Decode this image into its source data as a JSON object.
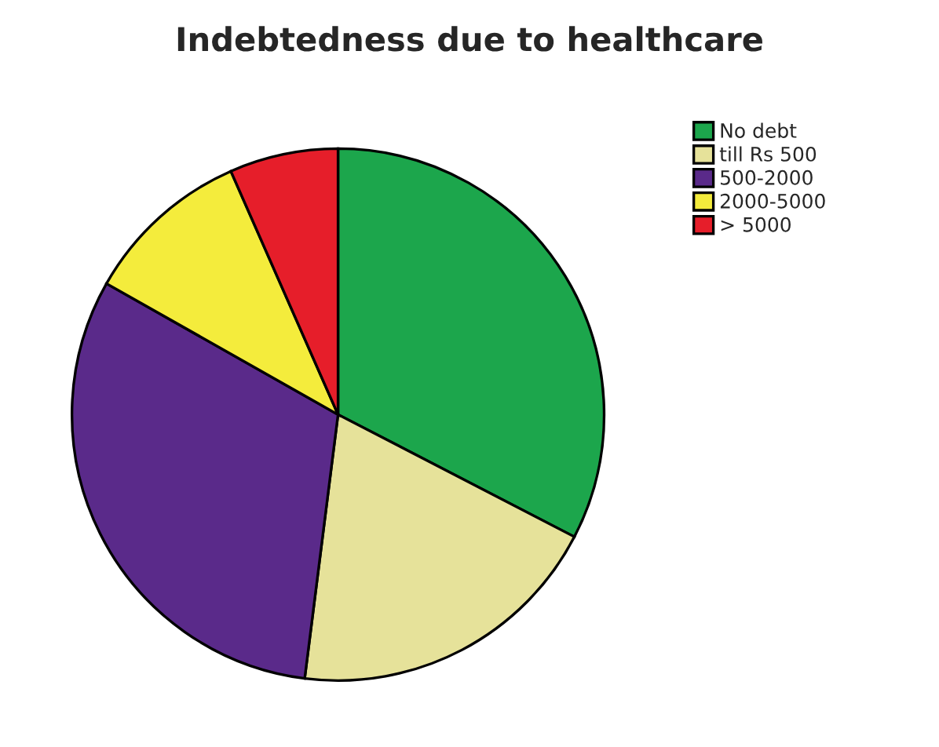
{
  "chart_data": {
    "type": "pie",
    "title": "Indebtedness due to healthcare",
    "categories": [
      "No debt",
      "till Rs 500",
      "500-2000",
      "2000-5000",
      "> 5000"
    ],
    "values": [
      32.6,
      19.4,
      31.2,
      10.2,
      6.6
    ],
    "colors": [
      "#1ca64c",
      "#e6e29a",
      "#5a2a8a",
      "#f4ec3c",
      "#e61e2a"
    ],
    "legend": "top right"
  }
}
